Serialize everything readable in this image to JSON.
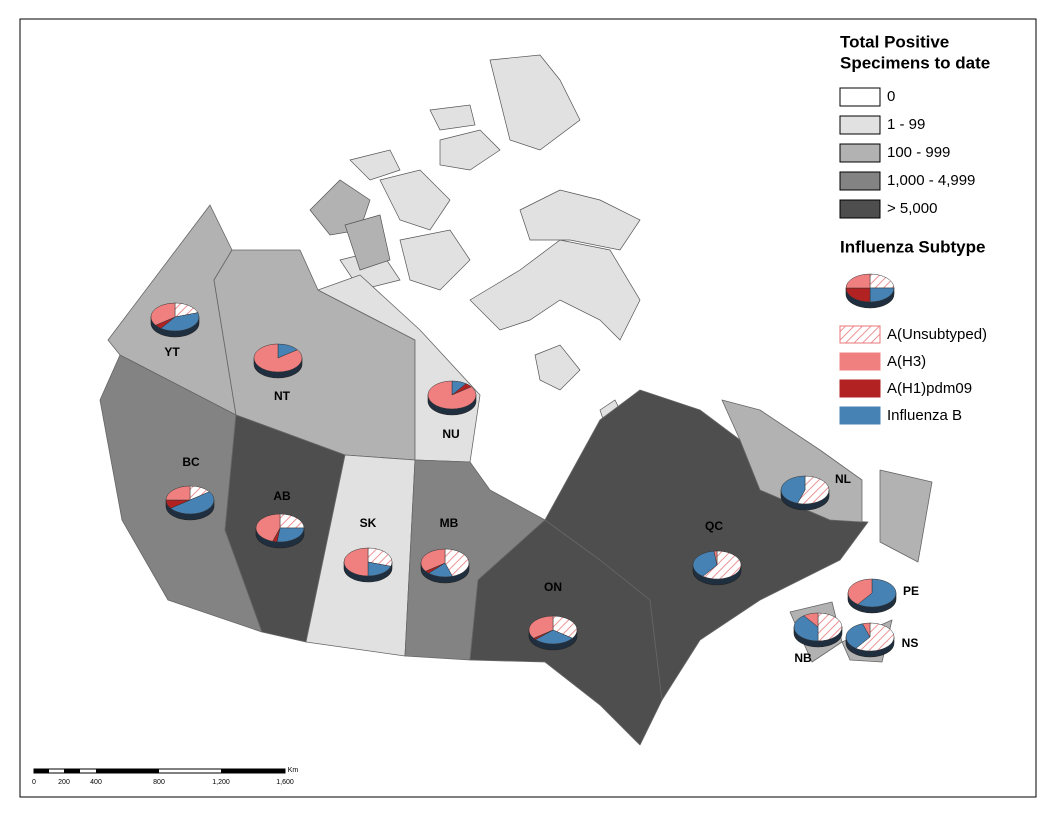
{
  "legend": {
    "title_lines": [
      "Total Positive",
      "Specimens to date"
    ],
    "classes": [
      {
        "label": "0",
        "color": "#ffffff"
      },
      {
        "label": "1 - 99",
        "color": "#e1e1e1"
      },
      {
        "label": "100 - 999",
        "color": "#b2b2b2"
      },
      {
        "label": "1,000 - 4,999",
        "color": "#838383"
      },
      {
        "label": "> 5,000",
        "color": "#4e4e4e"
      }
    ]
  },
  "subtype_legend": {
    "title": "Influenza Subtype",
    "items": [
      {
        "label": "A(Unsubtyped)",
        "color": "#e8767a"
      },
      {
        "label": "A(H3)",
        "color": "#f08080"
      },
      {
        "label": "A(H1)pdm09",
        "color": "#b22222"
      },
      {
        "label": "Influenza B",
        "color": "#4682b4"
      }
    ]
  },
  "provinces": [
    {
      "label": "YT",
      "class": 2,
      "shares": [
        20,
        35,
        5,
        40
      ]
    },
    {
      "label": "NT",
      "class": 2,
      "shares": [
        0,
        85,
        0,
        15
      ]
    },
    {
      "label": "NU",
      "class": 1,
      "shares": [
        0,
        85,
        5,
        10
      ]
    },
    {
      "label": "BC",
      "class": 3,
      "shares": [
        15,
        25,
        10,
        50
      ]
    },
    {
      "label": "AB",
      "class": 4,
      "shares": [
        25,
        45,
        3,
        27
      ]
    },
    {
      "label": "SK",
      "class": 1,
      "shares": [
        30,
        50,
        0,
        20
      ]
    },
    {
      "label": "MB",
      "class": 3,
      "shares": [
        45,
        35,
        3,
        17
      ]
    },
    {
      "label": "ON",
      "class": 4,
      "shares": [
        35,
        35,
        2,
        28
      ]
    },
    {
      "label": "QC",
      "class": 4,
      "shares": [
        60,
        2,
        0,
        38
      ]
    },
    {
      "label": "NL",
      "class": 2,
      "shares": [
        55,
        0,
        0,
        45
      ]
    },
    {
      "label": "PE",
      "class": 2,
      "shares": [
        0,
        40,
        0,
        60
      ]
    },
    {
      "label": "NB",
      "class": 2,
      "shares": [
        50,
        10,
        0,
        40
      ]
    },
    {
      "label": "NS",
      "class": 2,
      "shares": [
        60,
        5,
        0,
        35
      ]
    }
  ],
  "scale_bar": {
    "unit": "Km",
    "labels": [
      "0",
      "200",
      "400",
      "800",
      "1,200",
      "1,600"
    ]
  }
}
